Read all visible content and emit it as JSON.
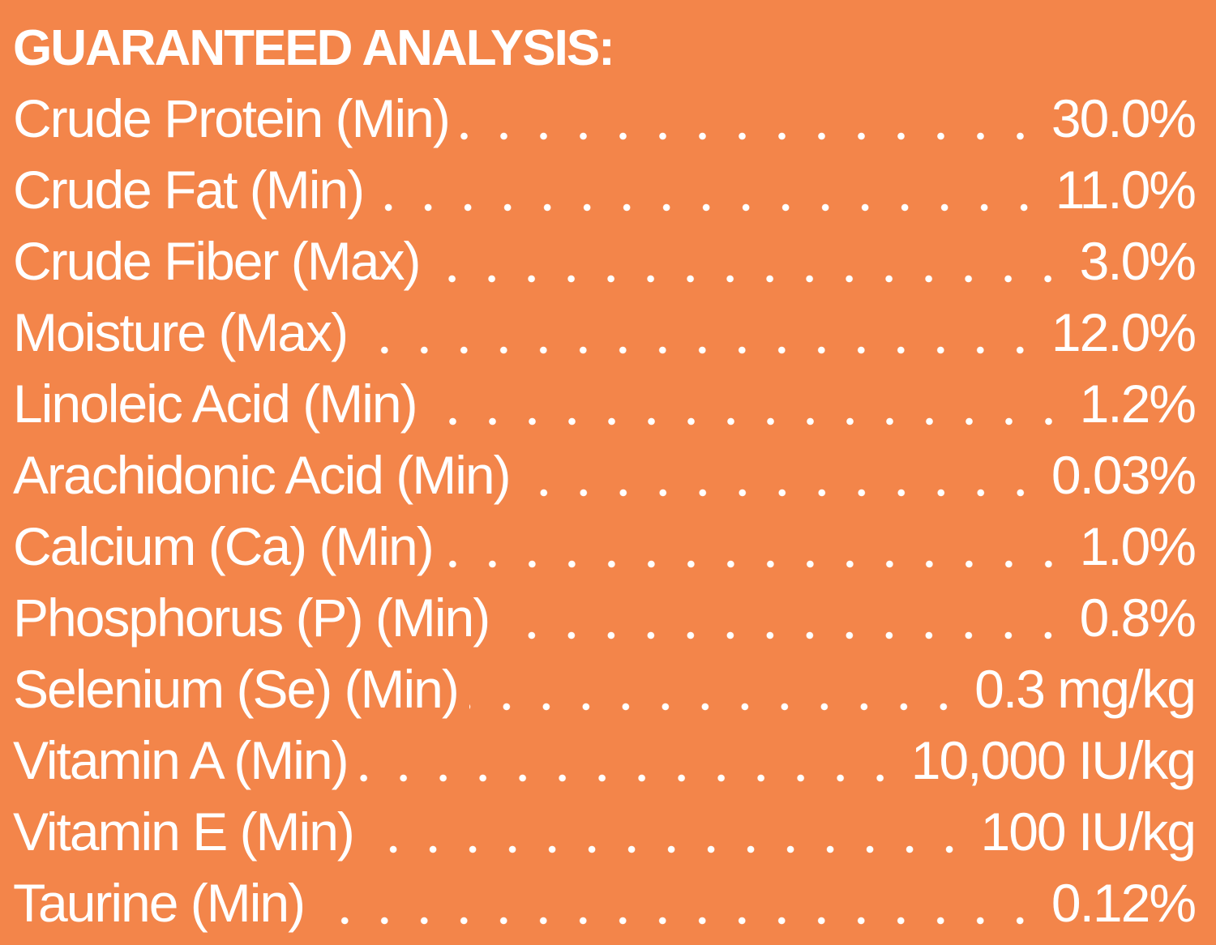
{
  "title": "GUARANTEED ANALYSIS:",
  "rows": [
    [
      "Crude Protein (Min)",
      "30.0%"
    ],
    [
      "Crude Fat (Min)",
      "11.0%"
    ],
    [
      "Crude Fiber (Max)",
      "3.0%"
    ],
    [
      "Moisture (Max)",
      "12.0%"
    ],
    [
      "Linoleic Acid (Min)",
      "1.2%"
    ],
    [
      "Arachidonic Acid (Min)",
      "0.03%"
    ],
    [
      "Calcium (Ca) (Min)",
      "1.0%"
    ],
    [
      "Phosphorus (P) (Min)",
      "0.8%"
    ],
    [
      "Selenium (Se) (Min)",
      "0.3 mg/kg"
    ],
    [
      "Vitamin A (Min)",
      "10,000 IU/kg"
    ],
    [
      "Vitamin E (Min)",
      "100 IU/kg"
    ],
    [
      "Taurine (Min)",
      "0.12%"
    ]
  ]
}
